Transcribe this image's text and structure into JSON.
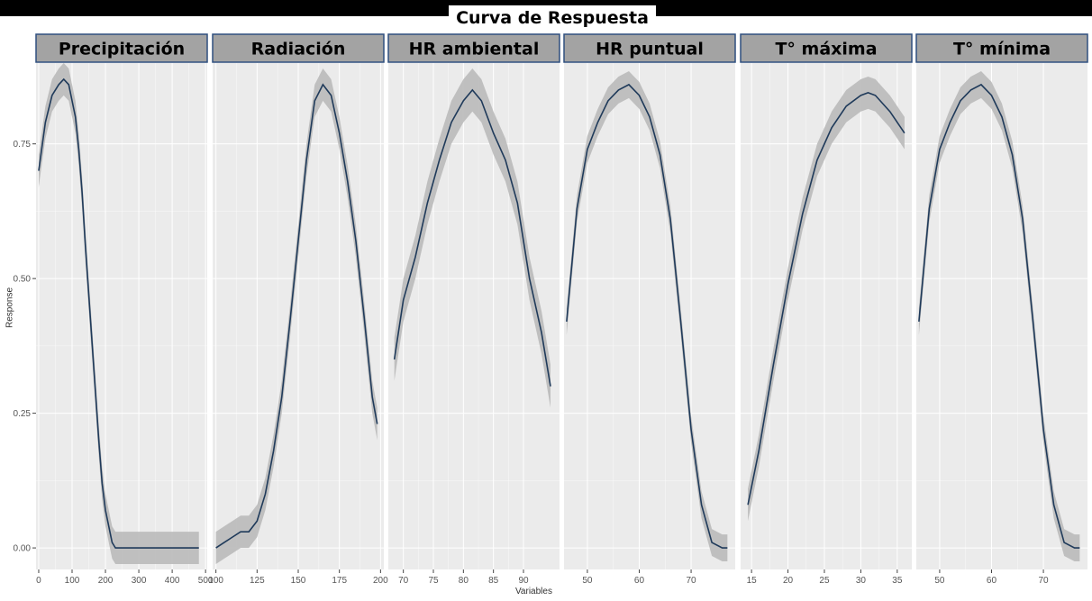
{
  "header": {
    "title": "Curva de Respuesta"
  },
  "axes": {
    "ylabel": "Response",
    "xlabel": "Variables"
  },
  "colors": {
    "line": "#1f3a5a",
    "band": "#bdbdbd",
    "panel_bg": "#ebebeb",
    "strip_bg": "#a3a3a3",
    "strip_border": "#2f4f7f",
    "grid": "#ffffff"
  },
  "chart_data": [
    {
      "type": "line",
      "panel": "Precipitación",
      "ylim": [
        -0.04,
        0.9
      ],
      "yticks": [
        0.0,
        0.25,
        0.5,
        0.75
      ],
      "ytick_labels": [
        "0.00",
        "0.25",
        "0.50",
        "0.75"
      ],
      "xlim": [
        -8,
        505
      ],
      "xticks": [
        0,
        100,
        200,
        300,
        400,
        500
      ],
      "xtick_labels": [
        "0",
        "100",
        "200",
        "300",
        "400",
        "500"
      ],
      "x": [
        0,
        20,
        40,
        60,
        75,
        90,
        100,
        110,
        120,
        130,
        140,
        150,
        160,
        170,
        180,
        190,
        200,
        210,
        220,
        230,
        240,
        250,
        300,
        350,
        400,
        480
      ],
      "y": [
        0.7,
        0.79,
        0.84,
        0.86,
        0.87,
        0.86,
        0.83,
        0.8,
        0.74,
        0.66,
        0.56,
        0.47,
        0.38,
        0.29,
        0.2,
        0.12,
        0.07,
        0.04,
        0.01,
        0.0,
        0.0,
        0.0,
        0.0,
        0.0,
        0.0,
        0.0
      ],
      "band": 0.03
    },
    {
      "type": "line",
      "panel": "Radiación",
      "ylim": [
        -0.04,
        0.9
      ],
      "yticks": [
        0.0,
        0.25,
        0.5,
        0.75
      ],
      "xlim": [
        98,
        202
      ],
      "xticks": [
        100,
        125,
        150,
        175,
        200
      ],
      "xtick_labels": [
        "100",
        "125",
        "150",
        "175",
        "200"
      ],
      "x": [
        100,
        105,
        110,
        115,
        120,
        125,
        130,
        135,
        140,
        145,
        150,
        155,
        160,
        165,
        170,
        175,
        180,
        185,
        190,
        195,
        198
      ],
      "y": [
        0.0,
        0.01,
        0.02,
        0.03,
        0.03,
        0.05,
        0.1,
        0.18,
        0.28,
        0.42,
        0.57,
        0.72,
        0.83,
        0.86,
        0.84,
        0.77,
        0.68,
        0.57,
        0.43,
        0.28,
        0.23
      ],
      "band": 0.03
    },
    {
      "type": "line",
      "panel": "HR ambiental",
      "ylim": [
        -0.04,
        0.9
      ],
      "yticks": [
        0.0,
        0.25,
        0.5,
        0.75
      ],
      "xlim": [
        67.5,
        96
      ],
      "xticks": [
        70,
        75,
        80,
        85,
        90
      ],
      "xtick_labels": [
        "70",
        "75",
        "80",
        "85",
        "90"
      ],
      "x": [
        68.5,
        70,
        72,
        74,
        76,
        78,
        80,
        81.5,
        83,
        85,
        87,
        89,
        91,
        93,
        94.5
      ],
      "y": [
        0.35,
        0.46,
        0.54,
        0.64,
        0.72,
        0.79,
        0.83,
        0.85,
        0.83,
        0.77,
        0.72,
        0.64,
        0.5,
        0.4,
        0.3
      ],
      "band": 0.04
    },
    {
      "type": "line",
      "panel": "HR puntual",
      "ylim": [
        -0.04,
        0.9
      ],
      "yticks": [
        0.0,
        0.25,
        0.5,
        0.75
      ],
      "xlim": [
        45.5,
        78.5
      ],
      "xticks": [
        50,
        60,
        70
      ],
      "xtick_labels": [
        "50",
        "60",
        "70"
      ],
      "x": [
        46,
        48,
        50,
        52,
        54,
        56,
        58,
        60,
        62,
        64,
        66,
        68,
        70,
        72,
        74,
        76,
        77
      ],
      "y": [
        0.42,
        0.63,
        0.74,
        0.79,
        0.83,
        0.85,
        0.86,
        0.84,
        0.8,
        0.73,
        0.61,
        0.42,
        0.22,
        0.08,
        0.01,
        0.0,
        0.0
      ],
      "band": 0.025
    },
    {
      "type": "line",
      "panel": "T° máxima",
      "ylim": [
        -0.04,
        0.9
      ],
      "yticks": [
        0.0,
        0.25,
        0.5,
        0.75
      ],
      "xlim": [
        13.5,
        37
      ],
      "xticks": [
        15,
        20,
        25,
        30,
        35
      ],
      "xtick_labels": [
        "15",
        "20",
        "25",
        "30",
        "35"
      ],
      "x": [
        14.5,
        16,
        18,
        20,
        22,
        24,
        26,
        28,
        30,
        31,
        32,
        34,
        36
      ],
      "y": [
        0.08,
        0.18,
        0.34,
        0.49,
        0.62,
        0.72,
        0.78,
        0.82,
        0.84,
        0.845,
        0.84,
        0.81,
        0.77
      ],
      "band": 0.03
    },
    {
      "type": "line",
      "panel": "T° mínima",
      "ylim": [
        -0.04,
        0.9
      ],
      "yticks": [
        0.0,
        0.25,
        0.5,
        0.75
      ],
      "xlim": [
        45.5,
        78.5
      ],
      "xticks": [
        50,
        60,
        70
      ],
      "xtick_labels": [
        "50",
        "60",
        "70"
      ],
      "x": [
        46,
        48,
        50,
        52,
        54,
        56,
        58,
        60,
        62,
        64,
        66,
        68,
        70,
        72,
        74,
        76,
        77
      ],
      "y": [
        0.42,
        0.63,
        0.74,
        0.79,
        0.83,
        0.85,
        0.86,
        0.84,
        0.8,
        0.73,
        0.61,
        0.42,
        0.22,
        0.08,
        0.01,
        0.0,
        0.0
      ],
      "band": 0.025
    }
  ]
}
